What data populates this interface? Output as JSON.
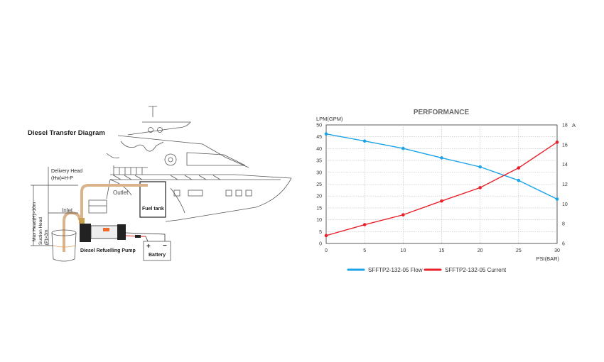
{
  "diagram": {
    "title": "Diesel Transfer Diagram",
    "delivery_head_line1": "Delivery Head",
    "delivery_head_line2": "(Hw)=H-P",
    "max_head": "Max Head(H)>10m",
    "suction_head_line1": "Suction Head",
    "suction_head_line2": "(P)>3m",
    "outlet": "Outlet",
    "inlet": "Inlet",
    "fuel_tank": "Fuel tank",
    "pump": "Diesel Refuelling Pump",
    "battery": "Battery",
    "battery_plus": "+",
    "battery_minus": "−"
  },
  "chart_data": {
    "type": "line",
    "title": "PERFORMANCE",
    "xlabel": "PSI(BAR)",
    "ylabel": "LPM(GPM)",
    "y2label": "A",
    "x": [
      0,
      5,
      10,
      15,
      20,
      25,
      30
    ],
    "xlim": [
      0,
      30
    ],
    "ylim": [
      0,
      50
    ],
    "y2lim": [
      6,
      18
    ],
    "xticks": [
      "0",
      "5",
      "10",
      "15",
      "20",
      "25",
      "30"
    ],
    "yticks": [
      "0",
      "5",
      "10",
      "15",
      "20",
      "25",
      "30",
      "35",
      "40",
      "45",
      "50"
    ],
    "y2ticks": [
      "6",
      "8",
      "10",
      "12",
      "14",
      "16",
      "18"
    ],
    "grid": true,
    "legend": "bottom",
    "series": [
      {
        "name": "SFFTP2-132-05 Flow",
        "axis": "left",
        "color": "#1aa3e8",
        "values": [
          46.2,
          43.2,
          40.1,
          36.1,
          32.3,
          26.6,
          18.7
        ]
      },
      {
        "name": "SFFTP2-132-05 Current",
        "axis": "right",
        "color": "#e8202a",
        "values": [
          6.8,
          7.9,
          8.9,
          10.3,
          11.65,
          13.65,
          16.25
        ]
      }
    ]
  }
}
